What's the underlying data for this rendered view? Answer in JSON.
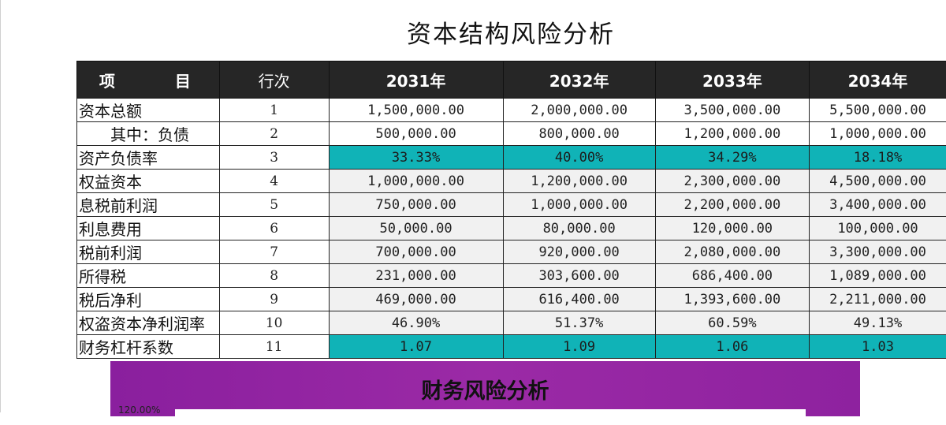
{
  "title": "资本结构风险分析",
  "table": {
    "headers": [
      "项　目",
      "行次",
      "2031年",
      "2032年",
      "2033年",
      "2034年"
    ],
    "rows": [
      {
        "label": "资本总额",
        "num": "1",
        "values": [
          "1,500,000.00",
          "2,000,000.00",
          "3,500,000.00",
          "5,500,000.00"
        ],
        "style": "white",
        "indent": false
      },
      {
        "label": "其中：负债",
        "num": "2",
        "values": [
          "500,000.00",
          "800,000.00",
          "1,200,000.00",
          "1,000,000.00"
        ],
        "style": "white",
        "indent": true
      },
      {
        "label": "资产负债率",
        "num": "3",
        "values": [
          "33.33%",
          "40.00%",
          "34.29%",
          "18.18%"
        ],
        "style": "teal",
        "indent": false
      },
      {
        "label": "权益资本",
        "num": "4",
        "values": [
          "1,000,000.00",
          "1,200,000.00",
          "2,300,000.00",
          "4,500,000.00"
        ],
        "style": "grey",
        "indent": false
      },
      {
        "label": "息税前利润",
        "num": "5",
        "values": [
          "750,000.00",
          "1,000,000.00",
          "2,200,000.00",
          "3,400,000.00"
        ],
        "style": "grey",
        "indent": false
      },
      {
        "label": "利息费用",
        "num": "6",
        "values": [
          "50,000.00",
          "80,000.00",
          "120,000.00",
          "100,000.00"
        ],
        "style": "grey",
        "indent": false
      },
      {
        "label": "税前利润",
        "num": "7",
        "values": [
          "700,000.00",
          "920,000.00",
          "2,080,000.00",
          "3,300,000.00"
        ],
        "style": "grey",
        "indent": false
      },
      {
        "label": "所得税",
        "num": "8",
        "values": [
          "231,000.00",
          "303,600.00",
          "686,400.00",
          "1,089,000.00"
        ],
        "style": "grey",
        "indent": false
      },
      {
        "label": "税后净利",
        "num": "9",
        "values": [
          "469,000.00",
          "616,400.00",
          "1,393,600.00",
          "2,211,000.00"
        ],
        "style": "grey",
        "indent": false
      },
      {
        "label": "权盗资本净利润率",
        "num": "10",
        "values": [
          "46.90%",
          "51.37%",
          "60.59%",
          "49.13%"
        ],
        "style": "grey",
        "indent": false
      },
      {
        "label": "财务杠杆系数",
        "num": "11",
        "values": [
          "1.07",
          "1.09",
          "1.06",
          "1.03"
        ],
        "style": "teal",
        "indent": false
      }
    ]
  },
  "chart": {
    "title": "财务风险分析",
    "ytick_top": "120.00%"
  },
  "colors": {
    "header_bg": "#262626",
    "highlight": "#10b3b7",
    "cell_bg": "#f1f1f1",
    "chart_panel": "#9b2aa6"
  }
}
